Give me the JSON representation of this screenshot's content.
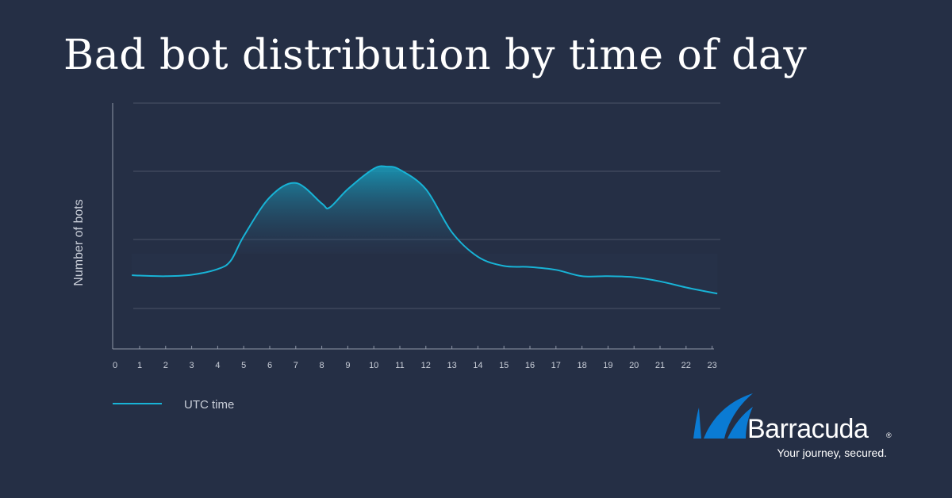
{
  "title": "Bad bot distribution by time of day",
  "chart_data": {
    "type": "area",
    "title": "Bad bot distribution by time of day",
    "xlabel": "",
    "ylabel": "Number of bots",
    "x": [
      0.7,
      1,
      2,
      3,
      4,
      4.5,
      5,
      6,
      7,
      8,
      8.3,
      9,
      10,
      10.5,
      11,
      12,
      13,
      14,
      15,
      16,
      17,
      18,
      19,
      20,
      21,
      22,
      23.2
    ],
    "y": [
      36,
      35.8,
      35.5,
      36.2,
      39,
      43,
      55,
      74,
      81,
      71,
      69,
      78,
      88,
      89,
      87.5,
      78,
      57,
      45,
      40.5,
      40,
      38.6,
      35.5,
      35.5,
      35,
      33,
      30,
      27
    ],
    "xticks": [
      "0",
      "1",
      "2",
      "3",
      "4",
      "5",
      "6",
      "7",
      "8",
      "9",
      "10",
      "11",
      "12",
      "13",
      "14",
      "15",
      "16",
      "17",
      "18",
      "19",
      "20",
      "21",
      "22",
      "23"
    ],
    "xlim": [
      0,
      23
    ],
    "ylim": [
      0,
      120
    ],
    "grid": true,
    "legend": {
      "position": "bottom-left",
      "entries": [
        "UTC time"
      ]
    },
    "colors": {
      "line": "#18b3d6",
      "area_top": "#12b8d8",
      "background": "#252f45",
      "grid": "#4a5368",
      "axis": "#8f97a8"
    }
  },
  "brand": {
    "name": "Barracuda",
    "registered": "®",
    "tagline": "Your journey, secured.",
    "logo_icon": "shark-fin-icon",
    "logo_color": "#0a7bd4"
  }
}
